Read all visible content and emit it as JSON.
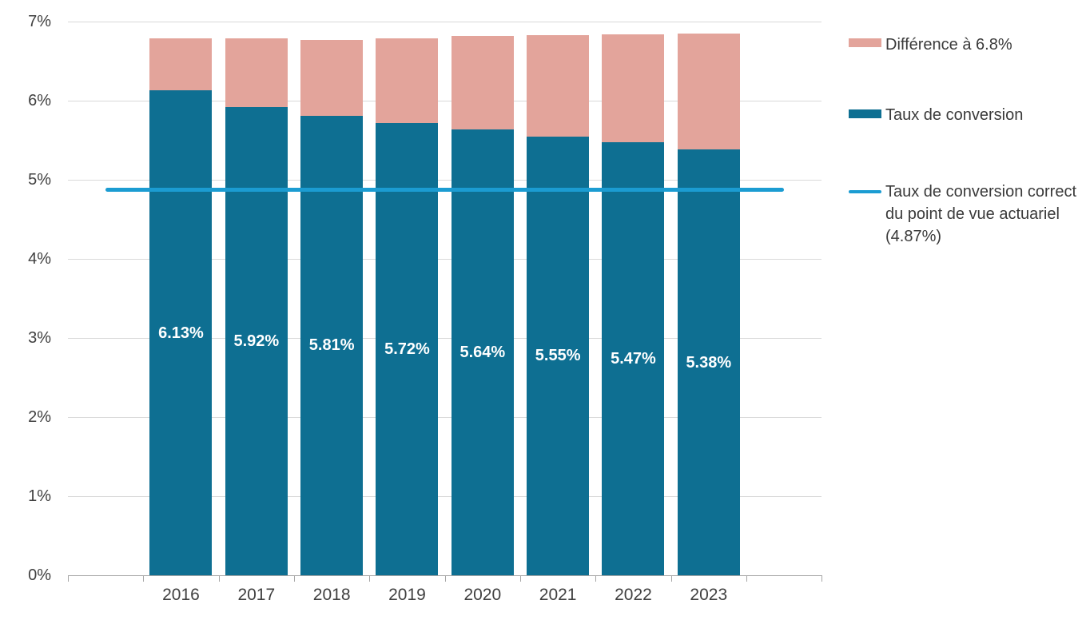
{
  "chart_data": {
    "type": "bar",
    "stacked": true,
    "title": "",
    "categories": [
      "2016",
      "2017",
      "2018",
      "2019",
      "2020",
      "2021",
      "2022",
      "2023"
    ],
    "series": [
      {
        "name": "Taux de conversion",
        "color": "#0E6F92",
        "values": [
          6.13,
          5.92,
          5.81,
          5.72,
          5.64,
          5.55,
          5.47,
          5.38
        ],
        "data_labels": [
          "6.13%",
          "5.92%",
          "5.81%",
          "5.72%",
          "5.64%",
          "5.55%",
          "5.47%",
          "5.38%"
        ],
        "data_label_color": "#FFFFFF"
      },
      {
        "name": "Différence à 6.8%",
        "color": "#E3A49B",
        "values": [
          0.66,
          0.87,
          0.96,
          1.07,
          1.18,
          1.28,
          1.37,
          1.47
        ]
      }
    ],
    "stack_totals_est": [
      6.79,
      6.79,
      6.77,
      6.79,
      6.82,
      6.83,
      6.84,
      6.85
    ],
    "reference_line": {
      "name": "Taux de conversion correct du point de vue actuariel (4.87%)",
      "value": 4.87,
      "color": "#1B9CD2"
    },
    "y_axis": {
      "min": 0,
      "max": 7,
      "tick_labels": [
        "0%",
        "1%",
        "2%",
        "3%",
        "4%",
        "5%",
        "6%",
        "7%"
      ],
      "format": "percent",
      "grid": true
    },
    "x_axis": {
      "tick_labels": [
        "2016",
        "2017",
        "2018",
        "2019",
        "2020",
        "2021",
        "2022",
        "2023"
      ]
    },
    "legend_position": "right"
  },
  "legend": {
    "items": [
      {
        "label": "Différence à 6.8%",
        "swatch": "rect",
        "color": "#E3A49B"
      },
      {
        "label": "Taux de conversion",
        "swatch": "rect",
        "color": "#0E6F92"
      },
      {
        "label": "Taux de conversion correct du point de vue actuariel (4.87%)",
        "swatch": "line",
        "color": "#1B9CD2",
        "lines": [
          "Taux de conversion correct",
          "du point de vue actuariel",
          "(4.87%)"
        ]
      }
    ]
  }
}
